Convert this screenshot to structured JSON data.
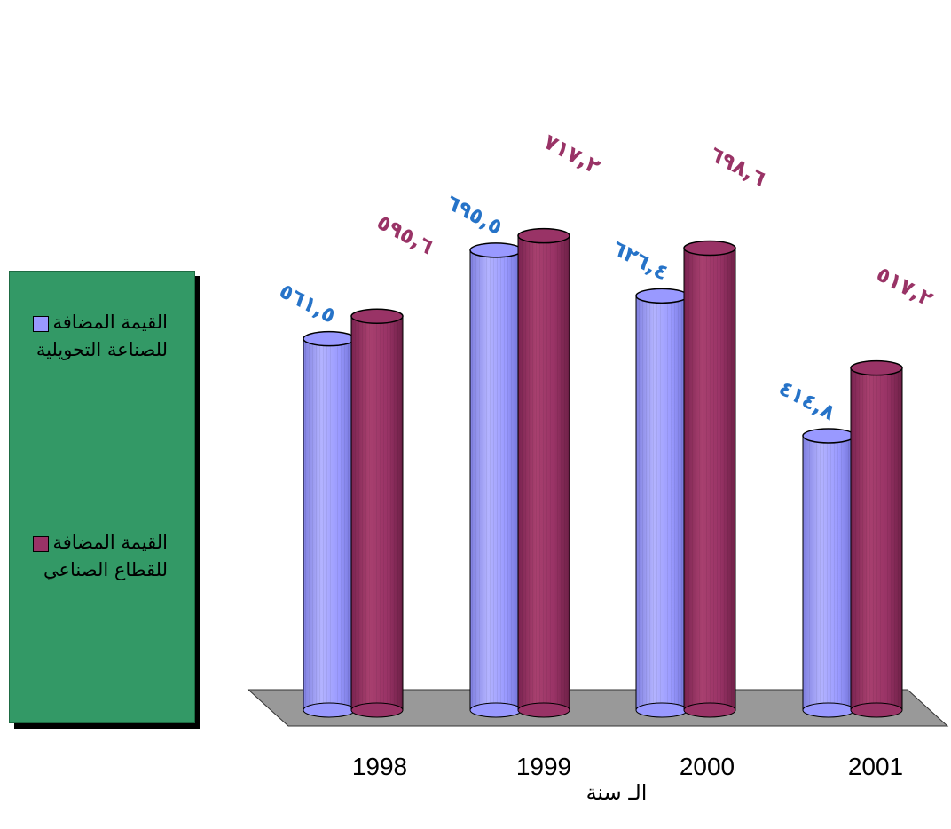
{
  "chart_data": {
    "type": "bar",
    "categories": [
      "1998",
      "1999",
      "2000",
      "2001"
    ],
    "xlabel": "الـ سنة",
    "series": [
      {
        "name": "القيمة المضافة للصناعة التحويلية",
        "values": [
          561.5,
          695.5,
          626.4,
          414.8
        ],
        "labels": [
          "٥٦١,٥",
          "٦٩٥,٥",
          "٦٢٦,٤",
          "٤١٤,٨"
        ],
        "color": "#9999ff",
        "label_color": "#2673c8"
      },
      {
        "name": "القيمة المضافة للقطاع الصناعي",
        "values": [
          595.6,
          717.2,
          698.6,
          517.2
        ],
        "labels": [
          "٥٩٥,٦",
          "٧١٧,٢",
          "٦٩٨,٦",
          "٥١٧,٢"
        ],
        "color": "#993366",
        "label_color": "#993366"
      }
    ],
    "legend_position": "left",
    "floor_color": "#999999",
    "legend_background": "#339966"
  },
  "legend": {
    "items": [
      "القيمة المضافة للصناعة التحويلية",
      "القيمة المضافة للقطاع الصناعي"
    ]
  }
}
